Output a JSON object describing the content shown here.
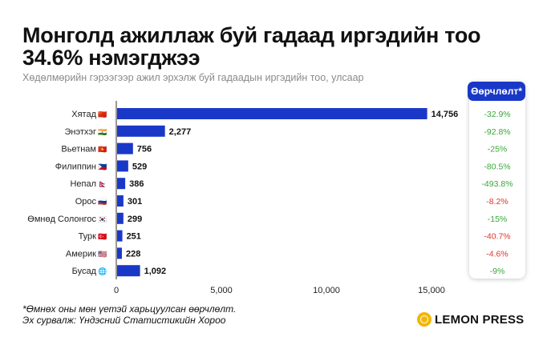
{
  "title": "Монголд ажиллаж буй гадаад иргэдийн тоо 34.6% нэмэгджээ",
  "subtitle": "Хөдөлмөрийн гэрээгээр ажил эрхэлж буй гадаадын иргэдийн тоо, улсаар",
  "change_header": "Өөрчлөлт*",
  "footnote_1": "*Өмнөх оны мөн үетэй харьцуулсан өөрчлөлт.",
  "footnote_2": "Эх сурвалж: Үндэсний Статистикийн Хороо",
  "logo_text": "LEMON PRESS",
  "colors": {
    "bar": "#1a38c8",
    "up": "#3aa63a",
    "down": "#e0352b",
    "header_bg": "#1a38c8"
  },
  "chart_data": {
    "type": "bar",
    "orientation": "horizontal",
    "categories": [
      "Хятад",
      "Энэтхэг",
      "Вьетнам",
      "Филиппин",
      "Непал",
      "Орос",
      "Өмнөд Солонгос",
      "Турк",
      "Америк",
      "Бусад"
    ],
    "flags": [
      "🇨🇳",
      "🇮🇳",
      "🇻🇳",
      "🇵🇭",
      "🇳🇵",
      "🇷🇺",
      "🇰🇷",
      "🇹🇷",
      "🇺🇸",
      "🌐"
    ],
    "values": [
      14756,
      2277,
      756,
      529,
      386,
      301,
      299,
      251,
      228,
      1092
    ],
    "value_labels": [
      "14,756",
      "2,277",
      "756",
      "529",
      "386",
      "301",
      "299",
      "251",
      "228",
      "1,092"
    ],
    "changes": [
      "-32.9%",
      "-92.8%",
      "-25%",
      "-80.5%",
      "-493.8%",
      "-8.2%",
      "-15%",
      "-40.7%",
      "-4.6%",
      "-9%"
    ],
    "change_direction": [
      "up",
      "up",
      "up",
      "up",
      "up",
      "down",
      "up",
      "down",
      "down",
      "up"
    ],
    "xlim": [
      0,
      15000
    ],
    "xticks": [
      0,
      5000,
      10000,
      15000
    ],
    "xtick_labels": [
      "0",
      "5,000",
      "10,000",
      "15,000"
    ],
    "grid": false
  }
}
